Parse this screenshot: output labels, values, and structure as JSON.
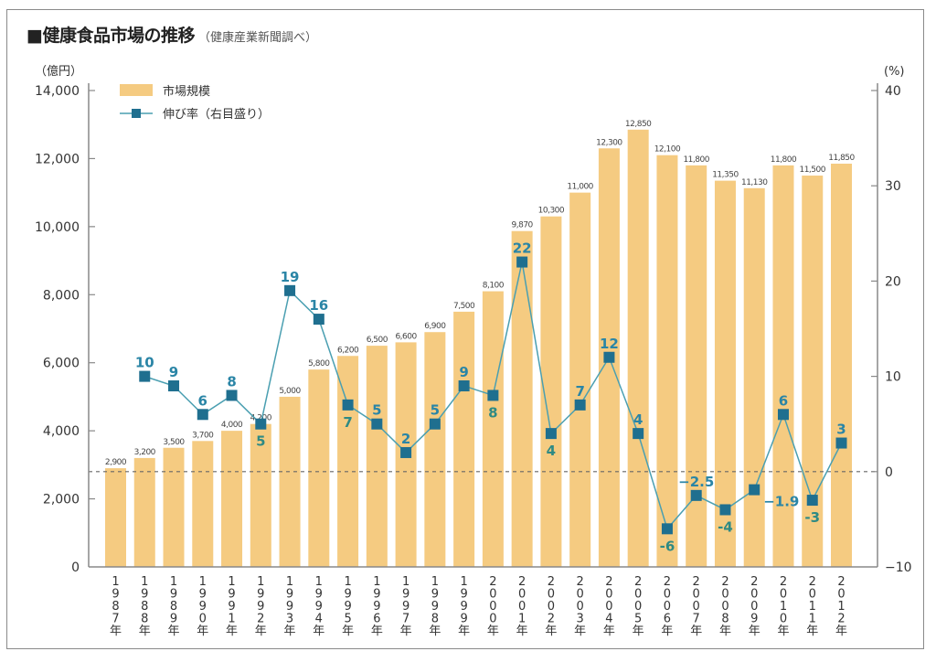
{
  "page": {
    "title": "■健康食品市場の推移",
    "source": "（健康産業新聞調べ）"
  },
  "colors": {
    "bar": "#f5cb81",
    "line": "#4a9fb1",
    "marker": "#1f6f8f",
    "label_above": "#2a85a6",
    "label_below": "#2e8a84",
    "axis": "#888888",
    "zero_line": "#666666"
  },
  "chart_data": {
    "type": "bar+line",
    "title": "■健康食品市場の推移",
    "subtitle": "（健康産業新聞調べ）",
    "categories": [
      "1987年",
      "1988年",
      "1989年",
      "1990年",
      "1991年",
      "1992年",
      "1993年",
      "1994年",
      "1995年",
      "1996年",
      "1997年",
      "1998年",
      "1999年",
      "2000年",
      "2001年",
      "2002年",
      "2003年",
      "2004年",
      "2005年",
      "2006年",
      "2007年",
      "2008年",
      "2009年",
      "2010年",
      "2011年",
      "2012年"
    ],
    "series": [
      {
        "name": "市場規模",
        "type": "bar",
        "axis": "left",
        "values": [
          2900,
          3200,
          3500,
          3700,
          4000,
          4200,
          5000,
          5800,
          6200,
          6500,
          6600,
          6900,
          7500,
          8100,
          9870,
          10300,
          11000,
          12300,
          12850,
          12100,
          11800,
          11350,
          11130,
          11800,
          11500,
          11850
        ],
        "value_labels": [
          "2,900",
          "3,200",
          "3,500",
          "3,700",
          "4,000",
          "4,200",
          "5,000",
          "5,800",
          "6,200",
          "6,500",
          "6,600",
          "6,900",
          "7,500",
          "8,100",
          "9,870",
          "10,300",
          "11,000",
          "12,300",
          "12,850",
          "12,100",
          "11,800",
          "11,350",
          "11,130",
          "11,800",
          "11,500",
          "11,850"
        ]
      },
      {
        "name": "伸び率（右目盛り）",
        "type": "line",
        "axis": "right",
        "values": [
          null,
          10,
          9,
          6,
          8,
          5,
          19,
          16,
          7,
          5,
          2,
          5,
          9,
          8,
          22,
          4,
          7,
          12,
          4,
          -6,
          -2.5,
          -4,
          -1.9,
          6,
          -3,
          3
        ],
        "value_labels": [
          null,
          "10",
          "9",
          "6",
          "8",
          "5",
          "19",
          "16",
          "7",
          "5",
          "2",
          "5",
          "9",
          "8",
          "22",
          "4",
          "7",
          "12",
          "4",
          "-6",
          "−2.5",
          "-4",
          "−1.9",
          "6",
          "-3",
          "3"
        ],
        "label_positions": [
          null,
          "above",
          "above",
          "above",
          "above",
          "below",
          "above",
          "above",
          "below",
          "above",
          "above",
          "above",
          "above",
          "below",
          "above",
          "below",
          "above",
          "above",
          "above",
          "below",
          "above",
          "below",
          "right",
          "above",
          "below",
          "above"
        ]
      }
    ],
    "y_left": {
      "label": "（億円）",
      "range": [
        0,
        14000
      ],
      "ticks": [
        0,
        2000,
        4000,
        6000,
        8000,
        10000,
        12000,
        14000
      ],
      "tick_labels": [
        "0",
        "2,000",
        "4,000",
        "6,000",
        "8,000",
        "10,000",
        "12,000",
        "14,000"
      ]
    },
    "y_right": {
      "label": "(%)",
      "range": [
        -10,
        40
      ],
      "ticks": [
        -10,
        0,
        10,
        20,
        30,
        40
      ],
      "tick_labels": [
        "−10",
        "0",
        "10",
        "20",
        "30",
        "40"
      ]
    },
    "zero_reference_line": "dashed at 0%",
    "legend": {
      "placement": "top-left",
      "items": [
        {
          "label": "市場規模",
          "kind": "bar"
        },
        {
          "label": "伸び率（右目盛り）",
          "kind": "line-marker"
        }
      ]
    },
    "grid": false
  }
}
